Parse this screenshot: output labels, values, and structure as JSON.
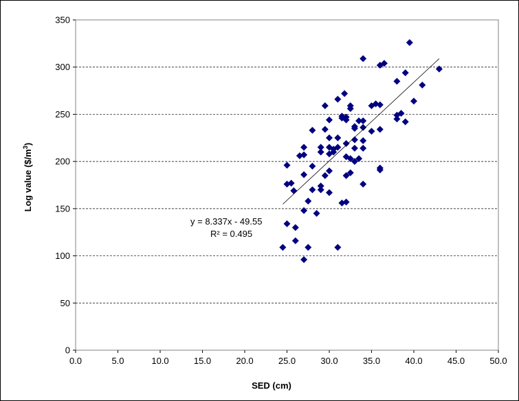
{
  "chart_data": {
    "type": "scatter",
    "title": "",
    "xlabel": "SED (cm)",
    "ylabel_main": "Log value ($/m",
    "ylabel_sup": "3",
    "ylabel_end": ")",
    "xlim": [
      0,
      50
    ],
    "ylim": [
      0,
      350
    ],
    "x_ticks": [
      0,
      5,
      10,
      15,
      20,
      25,
      30,
      35,
      40,
      45,
      50
    ],
    "x_tick_labels": [
      "0.0",
      "5.0",
      "10.0",
      "15.0",
      "20.0",
      "25.0",
      "30.0",
      "35.0",
      "40.0",
      "45.0",
      "50.0"
    ],
    "y_ticks": [
      0,
      50,
      100,
      150,
      200,
      250,
      300,
      350
    ],
    "y_tick_labels": [
      "0",
      "50",
      "100",
      "150",
      "200",
      "250",
      "300",
      "350"
    ],
    "grid": "horizontal dashed",
    "marker_color": "#000080",
    "trendline": {
      "slope": 8.337,
      "intercept": -49.55,
      "x_range": [
        24.5,
        43
      ]
    },
    "equation_label": "y = 8.337x  - 49.55",
    "r2_label": "R² = 0.495",
    "points": [
      [
        24.5,
        109
      ],
      [
        25,
        134
      ],
      [
        25,
        176
      ],
      [
        25,
        196
      ],
      [
        25.5,
        177
      ],
      [
        25.8,
        169
      ],
      [
        26,
        116
      ],
      [
        26,
        130
      ],
      [
        26.5,
        206
      ],
      [
        27,
        96
      ],
      [
        27,
        148
      ],
      [
        27,
        186
      ],
      [
        27,
        207
      ],
      [
        27,
        215
      ],
      [
        27.5,
        109
      ],
      [
        27.5,
        158
      ],
      [
        28,
        170
      ],
      [
        28,
        195
      ],
      [
        28,
        233
      ],
      [
        28.5,
        145
      ],
      [
        29,
        170
      ],
      [
        29,
        174
      ],
      [
        29,
        210
      ],
      [
        29,
        215
      ],
      [
        29.5,
        185
      ],
      [
        29.5,
        234
      ],
      [
        29.5,
        259
      ],
      [
        30,
        167
      ],
      [
        30,
        190
      ],
      [
        30,
        208
      ],
      [
        30,
        215
      ],
      [
        30,
        225
      ],
      [
        30,
        244
      ],
      [
        30.5,
        210
      ],
      [
        30.5,
        213
      ],
      [
        31,
        109
      ],
      [
        31,
        215
      ],
      [
        31,
        225
      ],
      [
        31,
        266
      ],
      [
        31.5,
        156
      ],
      [
        31.5,
        246
      ],
      [
        31.5,
        248
      ],
      [
        31.8,
        272
      ],
      [
        32,
        157
      ],
      [
        32,
        185
      ],
      [
        32,
        205
      ],
      [
        32,
        219
      ],
      [
        32,
        244
      ],
      [
        32,
        247
      ],
      [
        32.5,
        188
      ],
      [
        32.5,
        203
      ],
      [
        32.5,
        256
      ],
      [
        32.5,
        259
      ],
      [
        33,
        200
      ],
      [
        33,
        214
      ],
      [
        33,
        223
      ],
      [
        33,
        235
      ],
      [
        33,
        237
      ],
      [
        33.5,
        203
      ],
      [
        33.5,
        243
      ],
      [
        34,
        176
      ],
      [
        34,
        214
      ],
      [
        34,
        222
      ],
      [
        34,
        236
      ],
      [
        34,
        243
      ],
      [
        34,
        309
      ],
      [
        35,
        232
      ],
      [
        35,
        259
      ],
      [
        35.5,
        261
      ],
      [
        36,
        191
      ],
      [
        36,
        193
      ],
      [
        36,
        234
      ],
      [
        36,
        260
      ],
      [
        36,
        302
      ],
      [
        36.5,
        304
      ],
      [
        38,
        245
      ],
      [
        38,
        249
      ],
      [
        38,
        285
      ],
      [
        38.5,
        251
      ],
      [
        39,
        242
      ],
      [
        39,
        294
      ],
      [
        39.5,
        326
      ],
      [
        40,
        264
      ],
      [
        41,
        281
      ],
      [
        43,
        298
      ]
    ]
  }
}
